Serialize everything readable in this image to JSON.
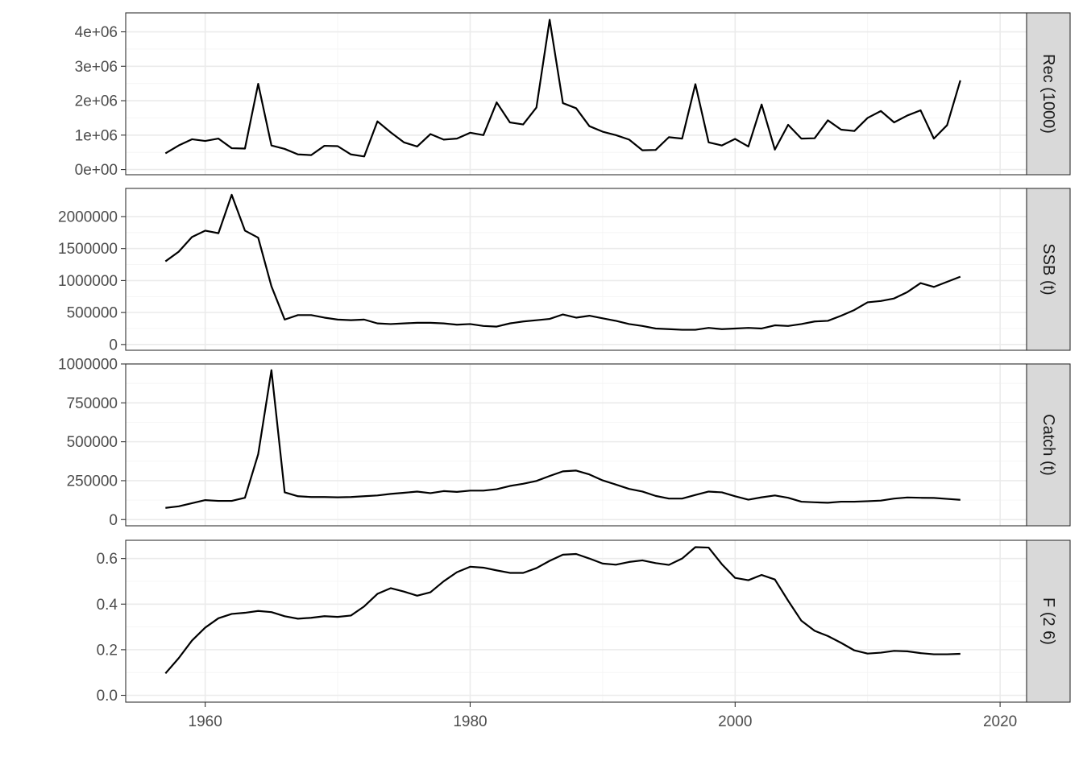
{
  "chart_data": {
    "type": "line",
    "layout": "facets-stacked",
    "shared_x_axis": {
      "range": [
        1954,
        2022
      ],
      "major_ticks": [
        1960,
        1980,
        2000,
        2020
      ],
      "tick_labels": [
        "1960",
        "1980",
        "2000",
        "2020"
      ]
    },
    "grid": true,
    "panels": [
      {
        "strip_label": "Rec (1000)",
        "ylim": [
          -150000,
          4550000
        ],
        "y_ticks": [
          0,
          1000000,
          2000000,
          3000000,
          4000000
        ],
        "y_tick_labels": [
          "0e+00",
          "1e+06",
          "2e+06",
          "3e+06",
          "4e+06"
        ],
        "x": [
          1957,
          1958,
          1959,
          1960,
          1961,
          1962,
          1963,
          1964,
          1965,
          1966,
          1967,
          1968,
          1969,
          1970,
          1971,
          1972,
          1973,
          1974,
          1975,
          1976,
          1977,
          1978,
          1979,
          1980,
          1981,
          1982,
          1983,
          1984,
          1985,
          1986,
          1987,
          1988,
          1989,
          1990,
          1991,
          1992,
          1993,
          1994,
          1995,
          1996,
          1997,
          1998,
          1999,
          2000,
          2001,
          2002,
          2003,
          2004,
          2005,
          2006,
          2007,
          2008,
          2009,
          2010,
          2011,
          2012,
          2013,
          2014,
          2015,
          2016,
          2017
        ],
        "values": [
          470000,
          700000,
          880000,
          830000,
          900000,
          620000,
          610000,
          2490000,
          700000,
          600000,
          440000,
          420000,
          690000,
          680000,
          440000,
          380000,
          1400000,
          1080000,
          790000,
          670000,
          1030000,
          870000,
          900000,
          1070000,
          1000000,
          1950000,
          1370000,
          1310000,
          1800000,
          4350000,
          1930000,
          1780000,
          1260000,
          1100000,
          1000000,
          870000,
          560000,
          570000,
          940000,
          900000,
          2480000,
          790000,
          700000,
          890000,
          670000,
          1890000,
          580000,
          1300000,
          900000,
          910000,
          1430000,
          1160000,
          1120000,
          1500000,
          1700000,
          1370000,
          1570000,
          1720000,
          900000,
          1290000,
          2590000
        ]
      },
      {
        "strip_label": "SSB (t)",
        "ylim": [
          -90000,
          2440000
        ],
        "y_ticks": [
          0,
          500000,
          1000000,
          1500000,
          2000000
        ],
        "y_tick_labels": [
          "0",
          "500000",
          "1000000",
          "1500000",
          "2000000"
        ],
        "x": [
          1957,
          1958,
          1959,
          1960,
          1961,
          1962,
          1963,
          1964,
          1965,
          1966,
          1967,
          1968,
          1969,
          1970,
          1971,
          1972,
          1973,
          1974,
          1975,
          1976,
          1977,
          1978,
          1979,
          1980,
          1981,
          1982,
          1983,
          1984,
          1985,
          1986,
          1987,
          1988,
          1989,
          1990,
          1991,
          1992,
          1993,
          1994,
          1995,
          1996,
          1997,
          1998,
          1999,
          2000,
          2001,
          2002,
          2003,
          2004,
          2005,
          2006,
          2007,
          2008,
          2009,
          2010,
          2011,
          2012,
          2013,
          2014,
          2015,
          2016,
          2017
        ],
        "values": [
          1300000,
          1450000,
          1680000,
          1780000,
          1740000,
          2340000,
          1780000,
          1670000,
          910000,
          390000,
          460000,
          460000,
          420000,
          390000,
          380000,
          390000,
          330000,
          320000,
          330000,
          340000,
          340000,
          330000,
          310000,
          320000,
          290000,
          280000,
          330000,
          360000,
          380000,
          400000,
          470000,
          420000,
          450000,
          410000,
          370000,
          320000,
          290000,
          250000,
          240000,
          230000,
          230000,
          260000,
          240000,
          250000,
          260000,
          250000,
          300000,
          290000,
          320000,
          360000,
          370000,
          450000,
          540000,
          660000,
          680000,
          720000,
          820000,
          960000,
          900000,
          980000,
          1060000
        ]
      },
      {
        "strip_label": "Catch (t)",
        "ylim": [
          -40000,
          1000000
        ],
        "y_ticks": [
          0,
          250000,
          500000,
          750000,
          1000000
        ],
        "y_tick_labels": [
          "0",
          "250000",
          "500000",
          "750000",
          "1000000"
        ],
        "x": [
          1957,
          1958,
          1959,
          1960,
          1961,
          1962,
          1963,
          1964,
          1965,
          1966,
          1967,
          1968,
          1969,
          1970,
          1971,
          1972,
          1973,
          1974,
          1975,
          1976,
          1977,
          1978,
          1979,
          1980,
          1981,
          1982,
          1983,
          1984,
          1985,
          1986,
          1987,
          1988,
          1989,
          1990,
          1991,
          1992,
          1993,
          1994,
          1995,
          1996,
          1997,
          1998,
          1999,
          2000,
          2001,
          2002,
          2003,
          2004,
          2005,
          2006,
          2007,
          2008,
          2009,
          2010,
          2011,
          2012,
          2013,
          2014,
          2015,
          2016,
          2017
        ],
        "values": [
          75000,
          85000,
          105000,
          125000,
          120000,
          120000,
          140000,
          420000,
          960000,
          175000,
          150000,
          145000,
          145000,
          143000,
          145000,
          150000,
          155000,
          165000,
          172000,
          180000,
          170000,
          183000,
          178000,
          186000,
          186000,
          195000,
          216000,
          230000,
          248000,
          280000,
          310000,
          315000,
          290000,
          252000,
          225000,
          197000,
          180000,
          152000,
          135000,
          135000,
          158000,
          180000,
          175000,
          150000,
          128000,
          143000,
          155000,
          140000,
          115000,
          111000,
          108000,
          115000,
          115000,
          118000,
          122000,
          135000,
          142000,
          140000,
          139000,
          133000,
          127000
        ]
      },
      {
        "strip_label": "F (2  6)",
        "ylim": [
          -0.03,
          0.68
        ],
        "y_ticks": [
          0,
          0.2,
          0.4,
          0.6
        ],
        "y_tick_labels": [
          "0.0",
          "0.2",
          "0.4",
          "0.6"
        ],
        "x": [
          1957,
          1958,
          1959,
          1960,
          1961,
          1962,
          1963,
          1964,
          1965,
          1966,
          1967,
          1968,
          1969,
          1970,
          1971,
          1972,
          1973,
          1974,
          1975,
          1976,
          1977,
          1978,
          1979,
          1980,
          1981,
          1982,
          1983,
          1984,
          1985,
          1986,
          1987,
          1988,
          1989,
          1990,
          1991,
          1992,
          1993,
          1994,
          1995,
          1996,
          1997,
          1998,
          1999,
          2000,
          2001,
          2002,
          2003,
          2004,
          2005,
          2006,
          2007,
          2008,
          2009,
          2010,
          2011,
          2012,
          2013,
          2014,
          2015,
          2016,
          2017
        ],
        "values": [
          0.096,
          0.163,
          0.24,
          0.297,
          0.338,
          0.357,
          0.362,
          0.37,
          0.365,
          0.347,
          0.336,
          0.34,
          0.347,
          0.344,
          0.35,
          0.39,
          0.445,
          0.47,
          0.455,
          0.437,
          0.452,
          0.5,
          0.54,
          0.564,
          0.56,
          0.548,
          0.537,
          0.537,
          0.558,
          0.59,
          0.617,
          0.62,
          0.6,
          0.578,
          0.573,
          0.585,
          0.592,
          0.58,
          0.572,
          0.6,
          0.65,
          0.648,
          0.575,
          0.515,
          0.505,
          0.528,
          0.508,
          0.415,
          0.327,
          0.283,
          0.26,
          0.23,
          0.197,
          0.183,
          0.187,
          0.195,
          0.193,
          0.185,
          0.18,
          0.18,
          0.182
        ]
      }
    ]
  }
}
